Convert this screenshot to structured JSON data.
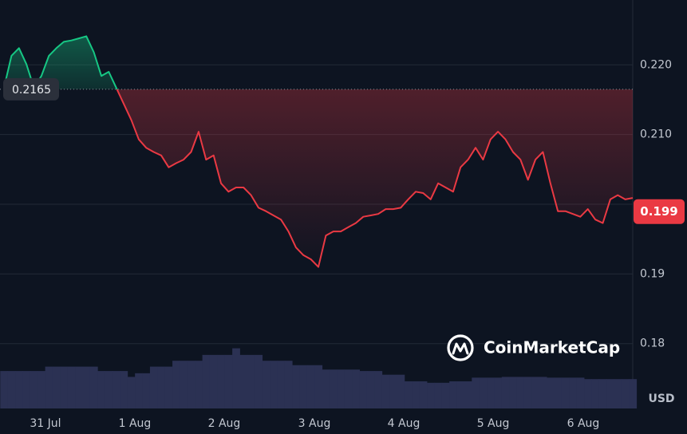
{
  "chart_data": {
    "type": "line",
    "values": [
      0.2167,
      0.2213,
      0.2224,
      0.2201,
      0.2167,
      0.2184,
      0.2213,
      0.2224,
      0.2233,
      0.2235,
      0.2238,
      0.2241,
      0.2218,
      0.2184,
      0.219,
      0.2167,
      0.2144,
      0.2121,
      0.2093,
      0.2081,
      0.2075,
      0.207,
      0.2053,
      0.2059,
      0.2064,
      0.2075,
      0.2104,
      0.2064,
      0.207,
      0.203,
      0.2018,
      0.2024,
      0.2024,
      0.2013,
      0.1995,
      0.199,
      0.1984,
      0.1978,
      0.1961,
      0.1938,
      0.1927,
      0.1921,
      0.191,
      0.1955,
      0.1961,
      0.1961,
      0.1967,
      0.1973,
      0.1982,
      0.1984,
      0.1986,
      0.1993,
      0.1993,
      0.1995,
      0.2007,
      0.2018,
      0.2016,
      0.2007,
      0.203,
      0.2024,
      0.2018,
      0.2053,
      0.2064,
      0.2081,
      0.2064,
      0.2093,
      0.2104,
      0.2093,
      0.2075,
      0.2064,
      0.2035,
      0.2064,
      0.2075,
      0.203,
      0.199,
      0.199,
      0.1986,
      0.1982,
      0.1993,
      0.1978,
      0.1973,
      0.2007,
      0.2013,
      0.2007,
      0.2009
    ],
    "volume": [
      51,
      51,
      51,
      51,
      51,
      51,
      57,
      57,
      57,
      57,
      57,
      57,
      57,
      51,
      51,
      51,
      51,
      43,
      48,
      48,
      57,
      57,
      57,
      65,
      65,
      65,
      65,
      73,
      73,
      73,
      73,
      82,
      73,
      73,
      73,
      65,
      65,
      65,
      65,
      59,
      59,
      59,
      59,
      53,
      53,
      53,
      53,
      53,
      51,
      51,
      51,
      46,
      46,
      46,
      37,
      37,
      37,
      35,
      35,
      35,
      37,
      37,
      37,
      42,
      42,
      42,
      42,
      43,
      43,
      43,
      43,
      43,
      43,
      42,
      42,
      42,
      42,
      42,
      40,
      40,
      40,
      40,
      40,
      40,
      40
    ],
    "up_color": "#16c784",
    "down_color": "#ea3943",
    "volume_color": "#2b3153",
    "reference_price": 0.2165,
    "current_price": 0.199,
    "xlim": [
      0,
      84
    ],
    "xticks": [
      {
        "value": 5.54,
        "label": "31 Jul"
      },
      {
        "value": 17.48,
        "label": "1 Aug"
      },
      {
        "value": 29.42,
        "label": "2 Aug"
      },
      {
        "value": 41.47,
        "label": "3 Aug"
      },
      {
        "value": 53.41,
        "label": "4 Aug"
      },
      {
        "value": 65.35,
        "label": "5 Aug"
      },
      {
        "value": 77.39,
        "label": "6 Aug"
      }
    ],
    "ylim": [
      0.1707,
      0.2293
    ],
    "yticks": [
      0.18,
      0.19,
      {
        "value": 0.2,
        "label": null
      },
      {
        "value": 0.21,
        "label": "0.210"
      },
      {
        "value": 0.22,
        "label": "0.220"
      }
    ],
    "grid": true,
    "currency": "USD",
    "watermark": "CoinMarketCap"
  }
}
